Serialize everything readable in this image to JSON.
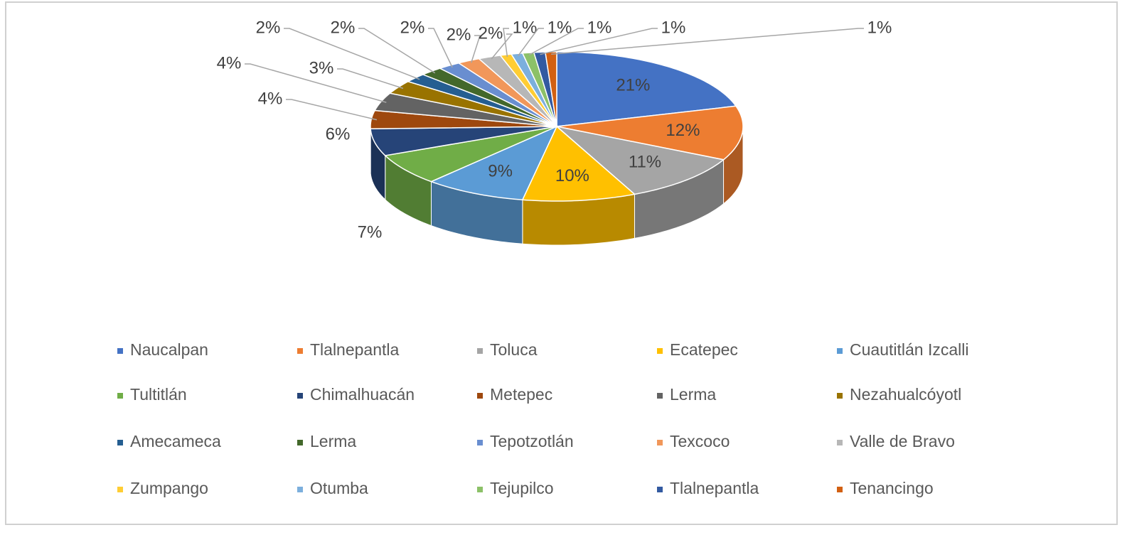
{
  "chart_data": {
    "type": "pie3d",
    "categories": [
      "Naucalpan",
      "Tlalnepantla",
      "Toluca",
      "Ecatepec",
      "Cuautitlán Izcalli",
      "Tultitlán",
      "Chimalhuacán",
      "Metepec",
      "Lerma",
      "Nezahualcóyotl",
      "Amecameca",
      "Lerma",
      "Tepotzotlán",
      "Texcoco",
      "Valle de Bravo",
      "Zumpango",
      "Otumba",
      "Tejupilco",
      "Tlalnepantla",
      "Tenancingo"
    ],
    "values": [
      21,
      12,
      11,
      10,
      9,
      7,
      6,
      4,
      4,
      3,
      2,
      2,
      2,
      2,
      2,
      1,
      1,
      1,
      1,
      1
    ],
    "value_labels": [
      "21%",
      "12%",
      "11%",
      "10%",
      "9%",
      "7%",
      "6%",
      "4%",
      "4%",
      "3%",
      "2%",
      "2%",
      "2%",
      "2%",
      "2%",
      "1%",
      "1%",
      "1%",
      "1%",
      "1%"
    ],
    "colors": [
      "#4472c4",
      "#ed7d31",
      "#a5a5a5",
      "#ffc000",
      "#5b9bd5",
      "#70ad47",
      "#264478",
      "#9e480e",
      "#636363",
      "#997300",
      "#255e91",
      "#43682b",
      "#698ed0",
      "#f1975a",
      "#b7b7b7",
      "#ffcd33",
      "#7cafdd",
      "#8cc168",
      "#335aa1",
      "#d26012"
    ],
    "legend": "bottom"
  }
}
